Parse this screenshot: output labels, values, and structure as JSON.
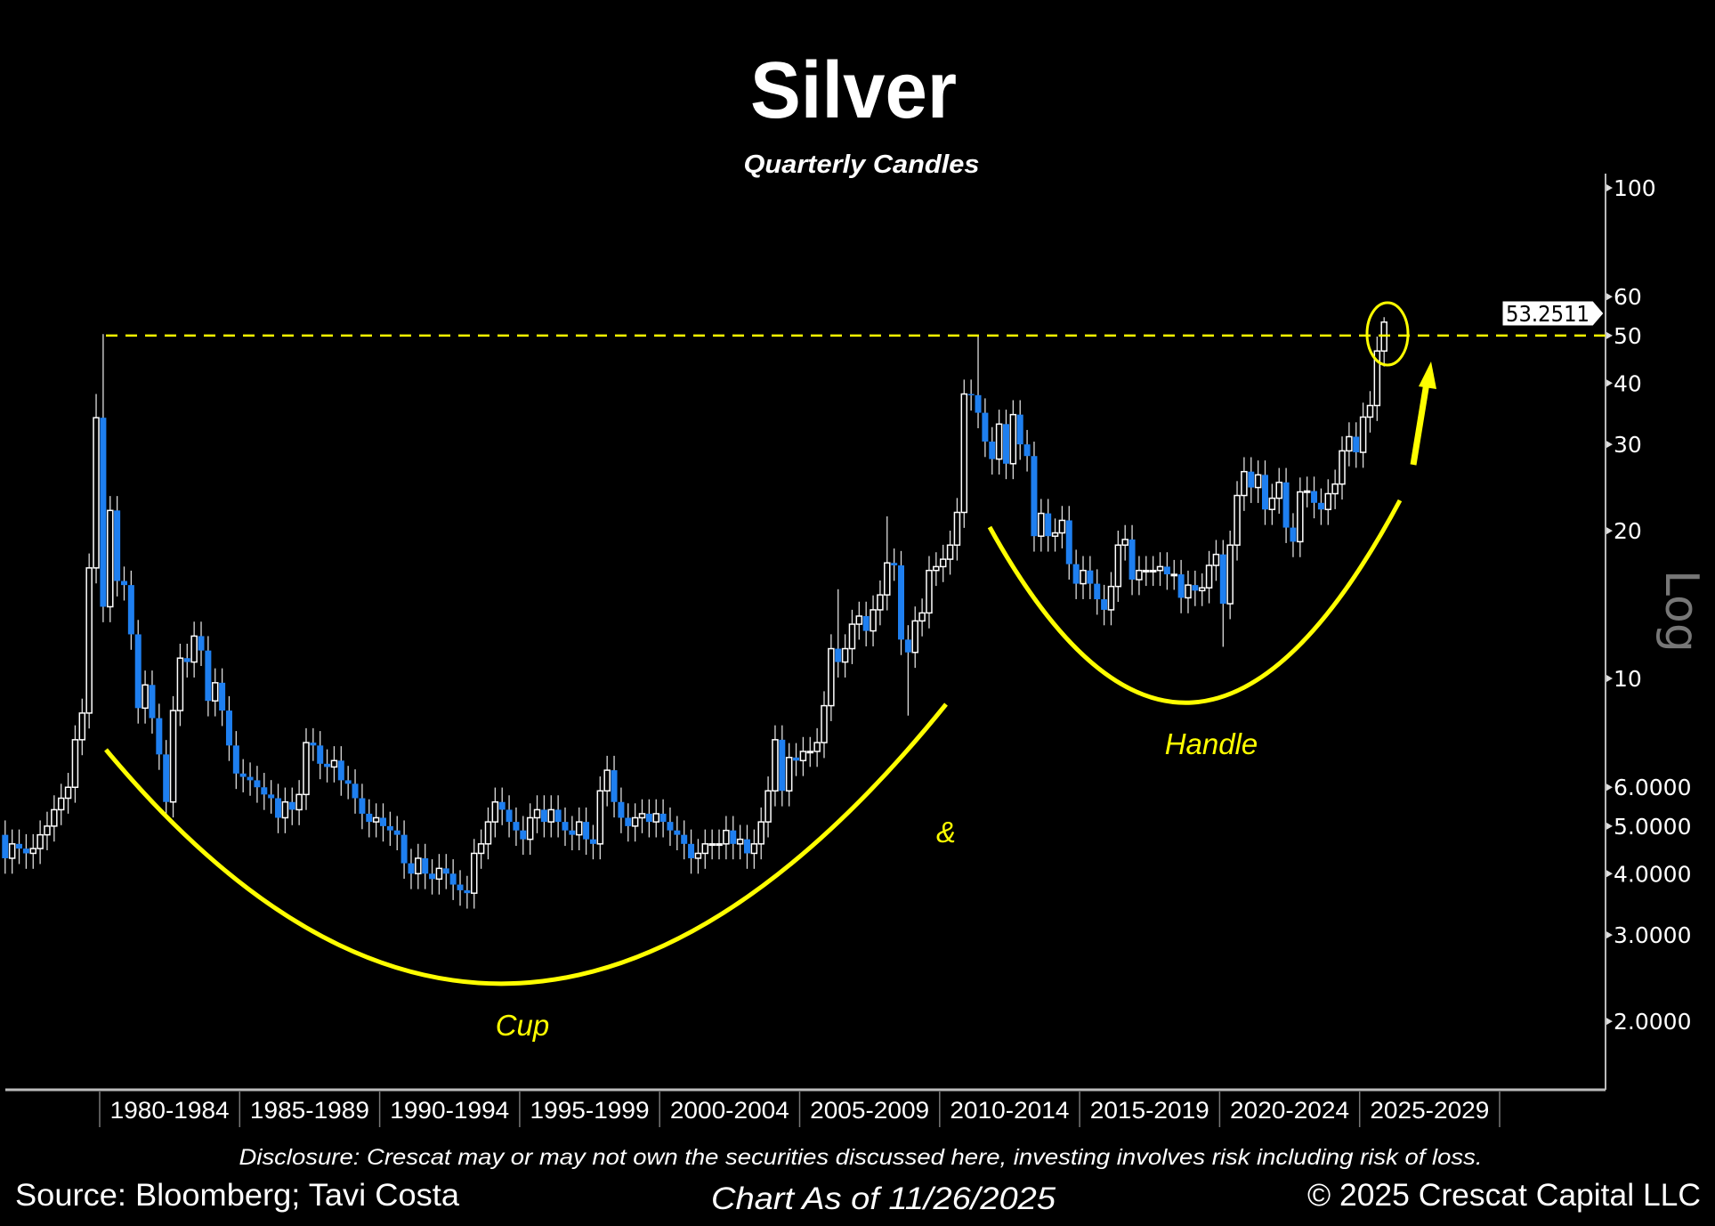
{
  "header": {
    "title": "Silver",
    "subtitle": "Quarterly Candles"
  },
  "footer": {
    "disclosure": "Disclosure: Crescat may or may not own the securities discussed here, investing involves risk including risk of loss.",
    "source": "Source: Bloomberg; Tavi Costa",
    "chart_as_of": "Chart As of 11/26/2025",
    "copyright": "© 2025 Crescat Capital LLC"
  },
  "colors": {
    "background": "#000000",
    "down_candle": "#1E7FF0",
    "up_candle": "#FFFFFF",
    "annotation": "#FFFF00",
    "axis": "#BBBBBB",
    "log_label": "#777777"
  },
  "chart_data": {
    "type": "candlestick",
    "title": "Silver",
    "subtitle": "Quarterly Candles",
    "y_scale": "log",
    "y_scale_label": "Log",
    "ylim": [
      1.6,
      110
    ],
    "y_ticks": [
      {
        "value": 100,
        "label": "100"
      },
      {
        "value": 60,
        "label": "60"
      },
      {
        "value": 50,
        "label": "50"
      },
      {
        "value": 40,
        "label": "40"
      },
      {
        "value": 30,
        "label": "30"
      },
      {
        "value": 20,
        "label": "20"
      },
      {
        "value": 10,
        "label": "10"
      },
      {
        "value": 6,
        "label": "6.0000"
      },
      {
        "value": 5,
        "label": "5.0000"
      },
      {
        "value": 4,
        "label": "4.0000"
      },
      {
        "value": 3,
        "label": "3.0000"
      },
      {
        "value": 2,
        "label": "2.0000"
      }
    ],
    "x_periods": [
      "1980-1984",
      "1985-1989",
      "1990-1994",
      "1995-1999",
      "2000-2004",
      "2005-2009",
      "2010-2014",
      "2015-2019",
      "2020-2024",
      "2025-2029"
    ],
    "x_first_period_start_year": 1980,
    "first_quarter": {
      "year": 1976,
      "q": 3
    },
    "first_open": 4.8,
    "quarterly_closes": [
      4.3,
      4.6,
      4.5,
      4.4,
      4.5,
      4.8,
      5.0,
      5.4,
      5.7,
      6.0,
      7.5,
      8.5,
      16.8,
      34.0,
      14.0,
      22.0,
      15.8,
      15.5,
      12.3,
      8.7,
      9.7,
      8.3,
      7.0,
      5.6,
      8.6,
      11.0,
      10.8,
      12.2,
      11.4,
      9.0,
      9.8,
      8.6,
      7.3,
      6.4,
      6.3,
      6.2,
      6.0,
      5.8,
      5.7,
      5.2,
      5.6,
      5.4,
      5.8,
      7.4,
      7.3,
      6.7,
      6.6,
      6.8,
      6.2,
      6.1,
      5.7,
      5.3,
      5.1,
      5.2,
      5.0,
      4.9,
      4.8,
      4.2,
      4.0,
      4.3,
      4.0,
      3.9,
      4.1,
      4.0,
      3.8,
      3.7,
      3.65,
      4.4,
      4.6,
      5.1,
      5.6,
      5.4,
      5.1,
      4.9,
      4.7,
      5.2,
      5.4,
      5.1,
      5.4,
      5.1,
      4.9,
      4.8,
      5.1,
      4.7,
      4.6,
      5.9,
      6.5,
      5.6,
      5.2,
      5.0,
      5.2,
      5.3,
      5.1,
      5.3,
      5.1,
      4.9,
      4.8,
      4.6,
      4.3,
      4.4,
      4.6,
      4.6,
      4.6,
      4.9,
      4.6,
      4.7,
      4.4,
      4.6,
      5.1,
      5.9,
      7.5,
      5.9,
      6.9,
      6.8,
      7.1,
      7.1,
      7.4,
      8.8,
      11.5,
      10.8,
      11.5,
      12.9,
      13.4,
      12.5,
      13.8,
      14.8,
      17.2,
      17.0,
      12.0,
      11.3,
      13.1,
      13.6,
      16.6,
      16.9,
      17.5,
      18.7,
      21.8,
      38.0,
      37.8,
      34.8,
      30.4,
      28.0,
      33.0,
      27.4,
      34.5,
      30.0,
      28.4,
      19.5,
      21.7,
      19.5,
      19.8,
      21.0,
      17.1,
      15.6,
      16.6,
      15.6,
      14.5,
      13.8,
      15.4,
      18.7,
      19.2,
      15.9,
      16.6,
      16.6,
      16.6,
      16.9,
      16.3,
      16.3,
      14.6,
      15.5,
      15.1,
      15.3,
      17.0,
      17.9,
      14.2,
      18.7,
      23.6,
      26.4,
      24.5,
      26.0,
      22.1,
      23.3,
      25.1,
      20.3,
      19.0,
      24.0,
      24.1,
      22.8,
      22.1,
      23.8,
      24.9,
      29.1,
      31.1,
      28.9,
      34.1,
      36.0,
      46.5,
      53.2511
    ],
    "wick_pct": 0.07,
    "high_overrides": {
      "1980Q1": 50.35,
      "2011Q2": 49.8,
      "2025Q4": 54.5,
      "2008Q1": 21.4,
      "2006Q2": 15.2,
      "1979Q4": 38.0
    },
    "low_overrides": {
      "2008Q4": 8.4,
      "2020Q1": 11.6
    },
    "last_price": "53.2511",
    "resistance_level": 50,
    "annotations": {
      "cup": "Cup",
      "ampersand": "&",
      "handle": "Handle"
    },
    "grid": false,
    "legend": "none"
  }
}
